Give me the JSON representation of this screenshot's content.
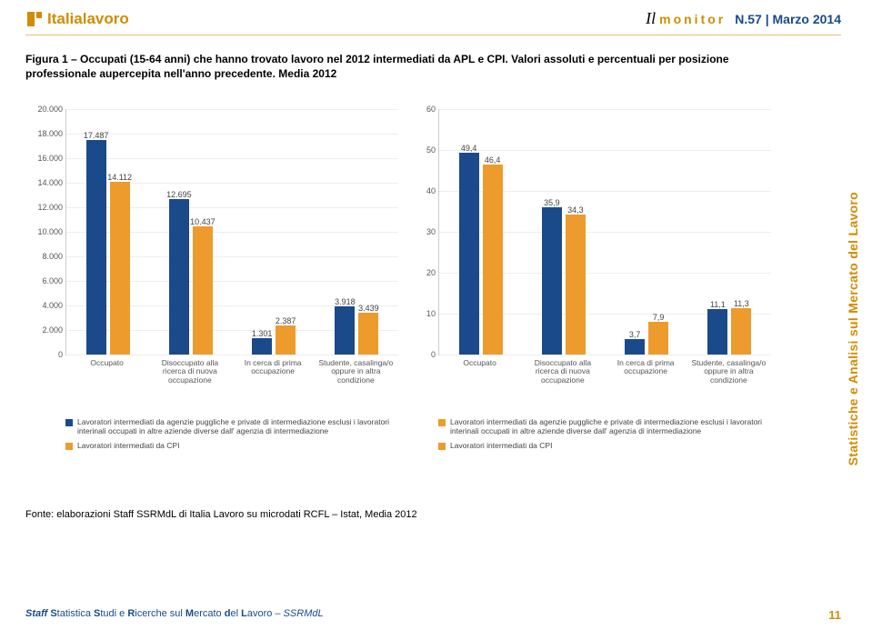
{
  "header": {
    "logo_text": "Italialavoro",
    "il": "Il",
    "monitor": "monitor",
    "issue": "N.57 | Marzo 2014"
  },
  "caption": "Figura 1 – Occupati (15-64 anni) che hanno trovato lavoro nel 2012 intermediati da APL e CPI. Valori assoluti e percentuali per posizione professionale aupercepita nell'anno precedente. Media 2012",
  "colors": {
    "series_a": "#1a4a8a",
    "series_b": "#ed9b2d",
    "grid": "#eeeeee",
    "axis": "#cccccc",
    "text": "#555555"
  },
  "legend": {
    "a": "Lavoratori intermediati da agenzie puggliche e private di intermediazione esclusi i lavoratori interinali occupati in altre aziende diverse dall' agenzia di intermediazione",
    "b": "Lavoratori intermediati da CPI"
  },
  "categories": [
    {
      "label": "Occupato"
    },
    {
      "label": "Disoccupato alla ricerca di nuova occupazione"
    },
    {
      "label": "In cerca di prima occupazione"
    },
    {
      "label": "Studente, casalinga/o oppure in altra condizione"
    }
  ],
  "chart_abs": {
    "ymax": 20000,
    "ystep": 2000,
    "ylabels": [
      "0",
      "2.000",
      "4.000",
      "6.000",
      "8.000",
      "10.000",
      "12.000",
      "14.000",
      "16.000",
      "18.000",
      "20.000"
    ],
    "series": [
      {
        "a": 17487,
        "b": 14112,
        "a_lbl": "17.487",
        "b_lbl": "14.112"
      },
      {
        "a": 12695,
        "b": 10437,
        "a_lbl": "12.695",
        "b_lbl": "10.437"
      },
      {
        "a": 1301,
        "b": 2387,
        "a_lbl": "1.301",
        "b_lbl": "2.387"
      },
      {
        "a": 3918,
        "b": 3439,
        "a_lbl": "3.918",
        "b_lbl": "3.439"
      }
    ]
  },
  "chart_pct": {
    "ymax": 60,
    "ystep": 10,
    "ylabels": [
      "0",
      "10",
      "20",
      "30",
      "40",
      "50",
      "60"
    ],
    "series": [
      {
        "a": 49.4,
        "b": 46.4,
        "a_lbl": "49,4",
        "b_lbl": "46,4"
      },
      {
        "a": 35.9,
        "b": 34.3,
        "a_lbl": "35,9",
        "b_lbl": "34,3"
      },
      {
        "a": 3.7,
        "b": 7.9,
        "a_lbl": "3,7",
        "b_lbl": "7,9"
      },
      {
        "a": 11.1,
        "b": 11.3,
        "a_lbl": "11,1",
        "b_lbl": "11,3"
      }
    ]
  },
  "source": "Fonte: elaborazioni Staff SSRMdL di Italia Lavoro su microdati RCFL – Istat, Media 2012",
  "footer": {
    "left_html": "Staff Statistica Studi e Ricerche sul Mercato del Lavoro – SSRMdL",
    "page": "11"
  },
  "side_text": "Statistiche e Analisi sul Mercato del Lavoro"
}
